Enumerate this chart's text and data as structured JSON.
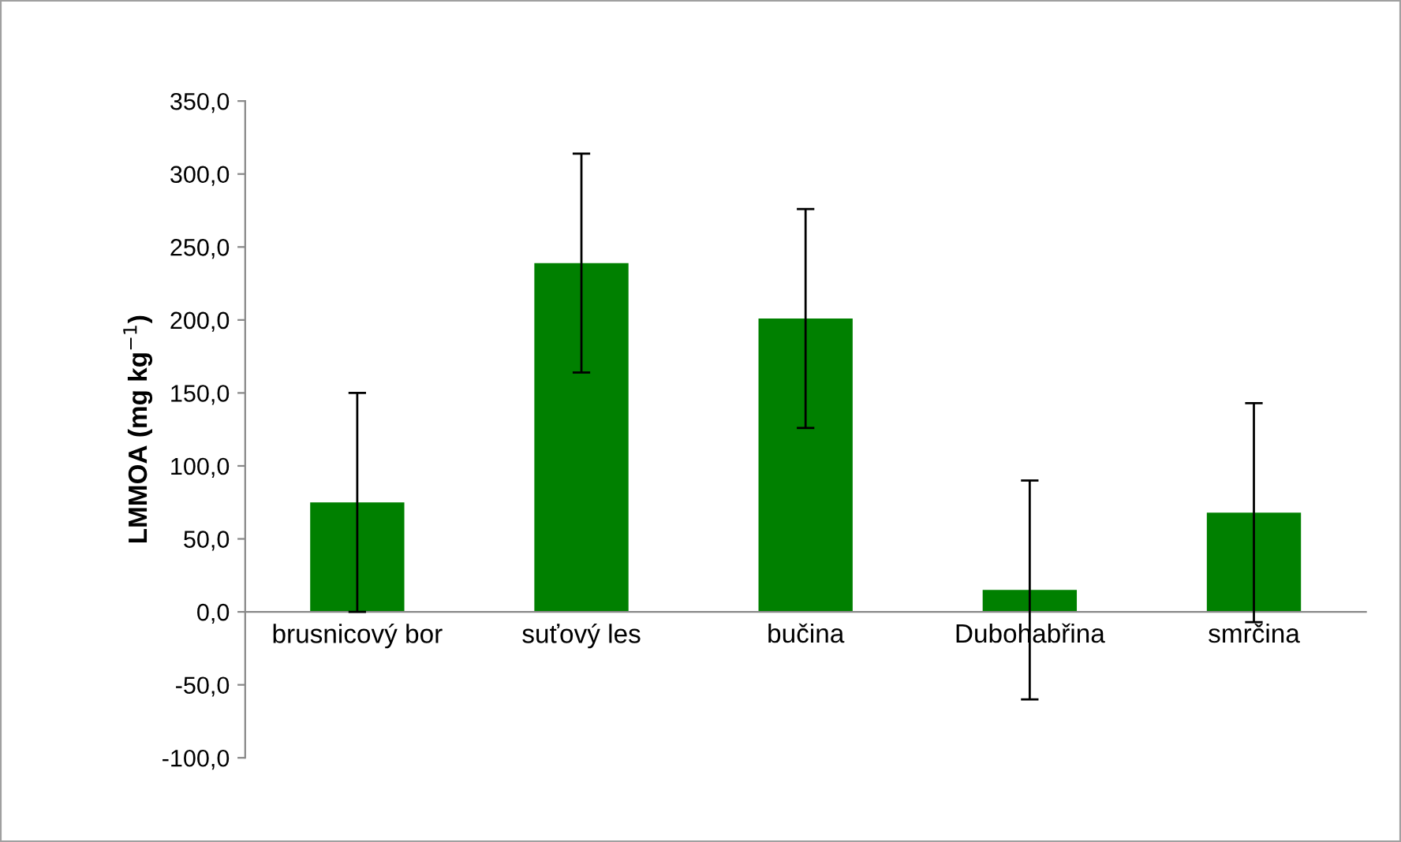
{
  "chart_data": {
    "type": "bar",
    "ylabel": "LMMOA (mg kg$^{−1}$)",
    "categories": [
      "brusnicový bor",
      "suťový les",
      "bučina",
      "Dubohabřina",
      "smrčina"
    ],
    "values": [
      75,
      239,
      201,
      15,
      68
    ],
    "errors": [
      75,
      75,
      75,
      75,
      75
    ],
    "color": "#008000",
    "ylim": [
      -100,
      350
    ],
    "yticks": [
      {
        "value": -100,
        "label": "-100,0"
      },
      {
        "value": -50,
        "label": "-50,0"
      },
      {
        "value": 0,
        "label": "0,0"
      },
      {
        "value": 50,
        "label": "50,0"
      },
      {
        "value": 100,
        "label": "100,0"
      },
      {
        "value": 150,
        "label": "150,0"
      },
      {
        "value": 200,
        "label": "200,0"
      },
      {
        "value": 250,
        "label": "250,0"
      },
      {
        "value": 300,
        "label": "300,0"
      },
      {
        "value": 350,
        "label": "350,0"
      }
    ],
    "grid": false,
    "legend": false
  }
}
